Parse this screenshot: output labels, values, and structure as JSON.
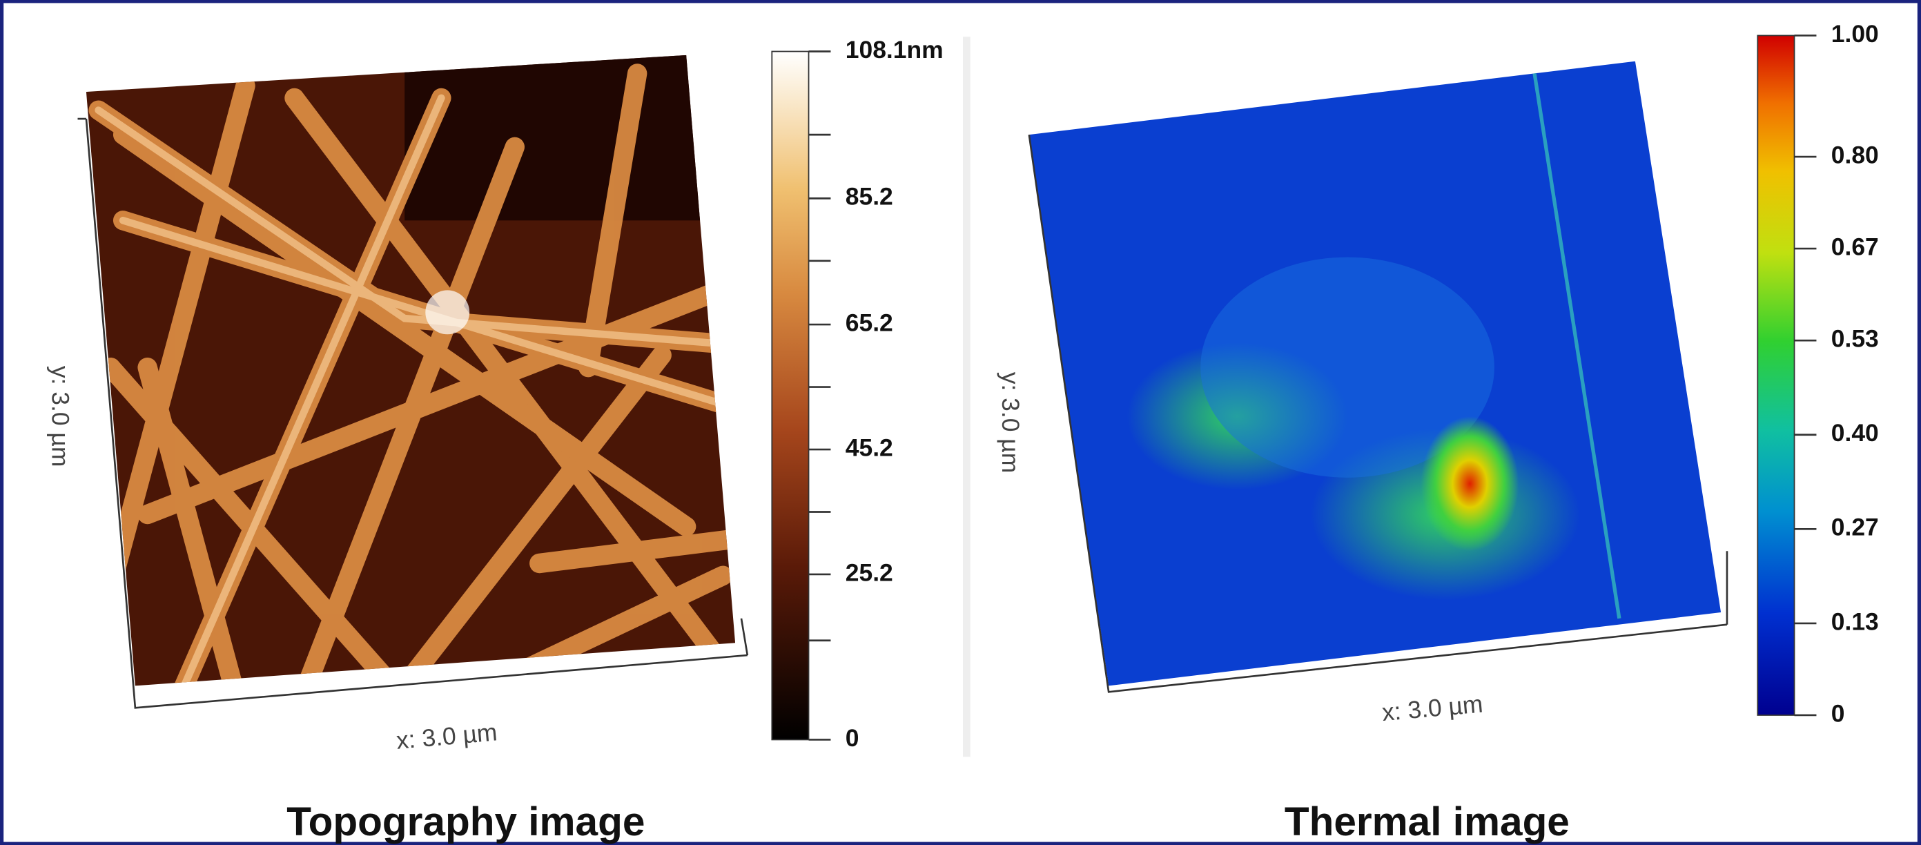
{
  "topography": {
    "title": "Topography image",
    "x_label": "x: 3.0 µm",
    "y_label": "y: 3.0 µm",
    "colorbar_ticks": [
      "108.1nm",
      "85.2",
      "65.2",
      "45.2",
      "25.2",
      "0"
    ]
  },
  "thermal": {
    "title": "Thermal image",
    "x_label": "x: 3.0 µm",
    "y_label": "y: 3.0 µm",
    "colorbar_ticks": [
      "1.00",
      "0.80",
      "0.67",
      "0.53",
      "0.40",
      "0.27",
      "0.13",
      "0"
    ]
  }
}
